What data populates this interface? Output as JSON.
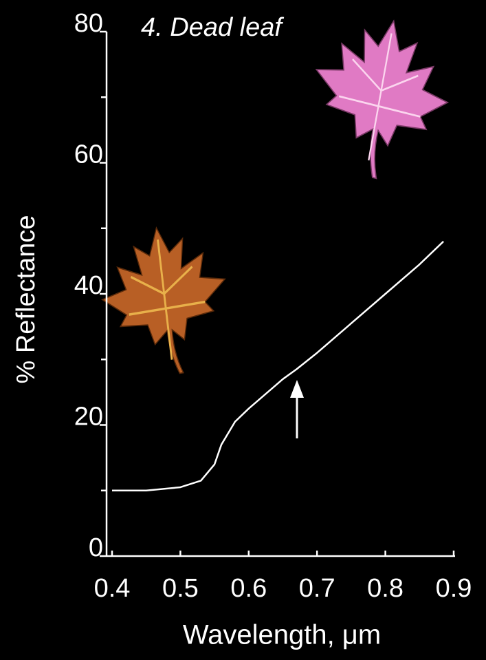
{
  "chart_data": {
    "type": "line",
    "title": "4. Dead leaf",
    "x_label": "Wavelength, μm",
    "y_label": "% Reflectance",
    "x": [
      0.4,
      0.45,
      0.5,
      0.53,
      0.55,
      0.56,
      0.58,
      0.6,
      0.65,
      0.67,
      0.7,
      0.75,
      0.8,
      0.85,
      0.885
    ],
    "series": [
      {
        "color": "#ffffff",
        "values": [
          10,
          10,
          10.5,
          11.5,
          14,
          17,
          20.5,
          22.5,
          27,
          28.5,
          31,
          35.5,
          40,
          44.5,
          48
        ]
      }
    ],
    "xlim": [
      0.4,
      0.9
    ],
    "xticks": [
      0.4,
      0.5,
      0.6,
      0.7,
      0.8,
      0.9
    ],
    "ylim": [
      0,
      80
    ],
    "yticks": [
      0,
      20,
      40,
      60,
      80
    ],
    "grid": false
  }
}
